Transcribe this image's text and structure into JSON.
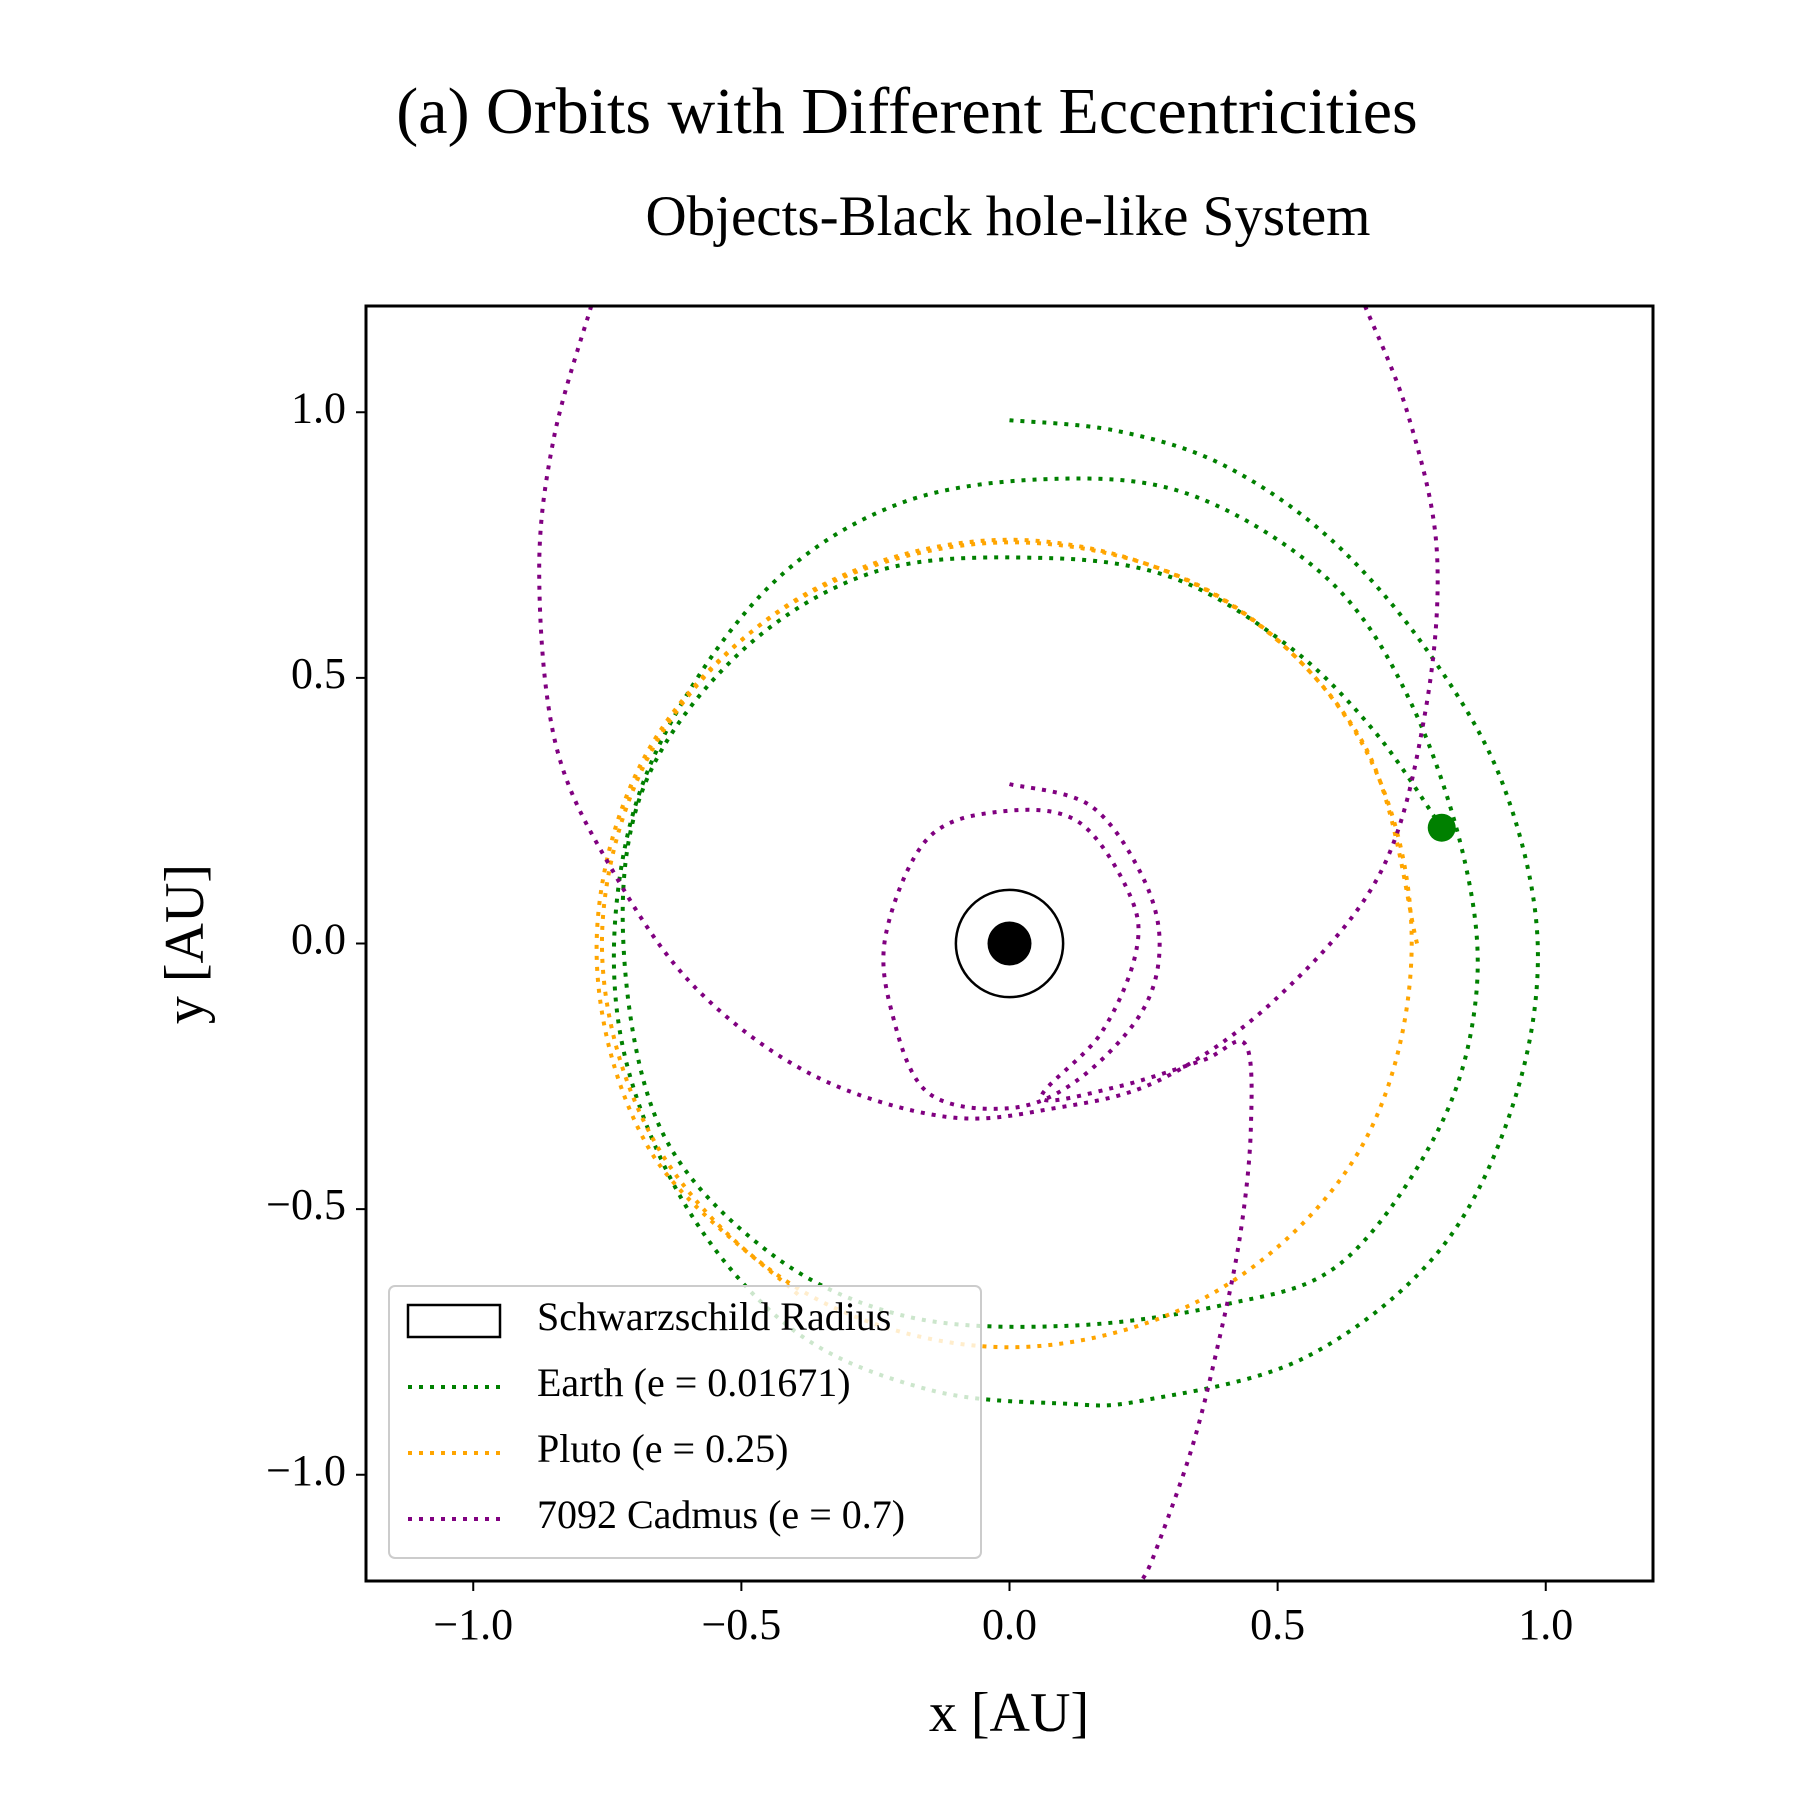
{
  "chart_data": {
    "type": "line",
    "title": "(a) Orbits with Different Eccentricities",
    "subtitle": "Objects-Black hole-like System",
    "xlabel": "x [AU]",
    "ylabel": "y [AU]",
    "xlim": [
      -1.2,
      1.2
    ],
    "ylim": [
      -1.2,
      1.2
    ],
    "xticks": [
      {
        "value": -1.0,
        "label": "−1.0"
      },
      {
        "value": -0.5,
        "label": "−0.5"
      },
      {
        "value": 0.0,
        "label": "0.0"
      },
      0.5,
      {
        "value": 1.0,
        "label": "1.0"
      }
    ],
    "yticks": [
      {
        "value": -1.0,
        "label": "−1.0"
      },
      {
        "value": -0.5,
        "label": "−0.5"
      },
      {
        "value": 0.0,
        "label": "0.0"
      },
      0.5,
      {
        "value": 1.0,
        "label": "1.0"
      }
    ],
    "legend": "lower left",
    "schwarzschild": {
      "name": "Schwarzschild Radius",
      "x": 0,
      "y": 0,
      "radius": 0.1,
      "color": "#000000"
    },
    "series": [
      {
        "name": "Earth (e = 0.01671)",
        "color": "#008000",
        "x": [
          0.0,
          0.2,
          0.4,
          0.6,
          0.78,
          0.92,
          0.985,
          0.94,
          0.8,
          0.55,
          0.25,
          0.1,
          -0.15,
          -0.4,
          -0.6,
          -0.72,
          -0.73,
          -0.65,
          -0.45,
          -0.2,
          0.1,
          0.35,
          0.6,
          0.75,
          0.85,
          0.87,
          0.8,
          0.62,
          0.4,
          0.1,
          -0.2,
          -0.45,
          -0.65,
          -0.72,
          -0.68,
          -0.5,
          -0.25,
          0.05,
          0.3,
          0.52,
          0.68,
          0.806
        ],
        "y": [
          0.985,
          0.965,
          0.9,
          0.76,
          0.55,
          0.3,
          0.0,
          -0.3,
          -0.58,
          -0.78,
          -0.86,
          -0.866,
          -0.84,
          -0.73,
          -0.5,
          -0.2,
          0.1,
          0.38,
          0.67,
          0.83,
          0.875,
          0.84,
          0.68,
          0.45,
          0.15,
          -0.1,
          -0.35,
          -0.6,
          -0.68,
          -0.72,
          -0.7,
          -0.58,
          -0.35,
          0.0,
          0.3,
          0.55,
          0.7,
          0.726,
          0.69,
          0.56,
          0.4,
          0.218
        ]
      },
      {
        "name": "Pluto (e = 0.25)",
        "color": "#ffa500",
        "x": [
          0.76,
          0.658,
          0.38,
          0.0,
          -0.38,
          -0.658,
          -0.76,
          -0.658,
          -0.38,
          0.0,
          0.38,
          0.658,
          0.75,
          0.65,
          0.37,
          -0.01,
          -0.39,
          -0.67,
          -0.77,
          -0.67,
          -0.39
        ],
        "y": [
          0.0,
          0.38,
          0.658,
          0.76,
          0.658,
          0.38,
          0.0,
          -0.38,
          -0.658,
          -0.76,
          -0.658,
          -0.38,
          0.01,
          0.39,
          0.665,
          0.755,
          0.65,
          0.37,
          -0.01,
          -0.39,
          -0.665
        ]
      },
      {
        "name": "7092 Cadmus (e = 0.7)",
        "color": "#800080",
        "x": [
          0.0,
          0.15,
          0.246,
          0.28,
          0.246,
          0.127,
          0.0,
          -0.153,
          -0.22,
          -0.23,
          -0.153,
          -0.02,
          0.127,
          0.225,
          0.235,
          0.17,
          0.06,
          0.2,
          0.36,
          0.44,
          0.45,
          0.43,
          0.39,
          0.34,
          0.27,
          0.246,
          null,
          0.663,
          0.743,
          0.797,
          0.775,
          0.69,
          0.495,
          0.28,
          0.084,
          -0.12,
          -0.37,
          -0.585,
          -0.736,
          -0.845,
          -0.877,
          -0.85,
          -0.78
        ],
        "y": [
          0.3,
          0.26,
          0.13,
          0.0,
          -0.13,
          -0.257,
          -0.31,
          -0.28,
          -0.127,
          0.02,
          0.197,
          0.248,
          0.23,
          0.09,
          -0.02,
          -0.17,
          -0.29,
          -0.27,
          -0.22,
          -0.19,
          -0.35,
          -0.55,
          -0.75,
          -0.95,
          -1.15,
          -1.2,
          null,
          1.2,
          0.996,
          0.737,
          0.434,
          0.13,
          -0.106,
          -0.257,
          -0.31,
          -0.326,
          -0.246,
          -0.084,
          0.13,
          0.37,
          0.693,
          0.95,
          1.2
        ]
      }
    ],
    "markers": [
      {
        "x": 0,
        "y": 0,
        "color": "#000000"
      },
      {
        "x": 0.806,
        "y": 0.218,
        "color": "#008000"
      }
    ]
  }
}
